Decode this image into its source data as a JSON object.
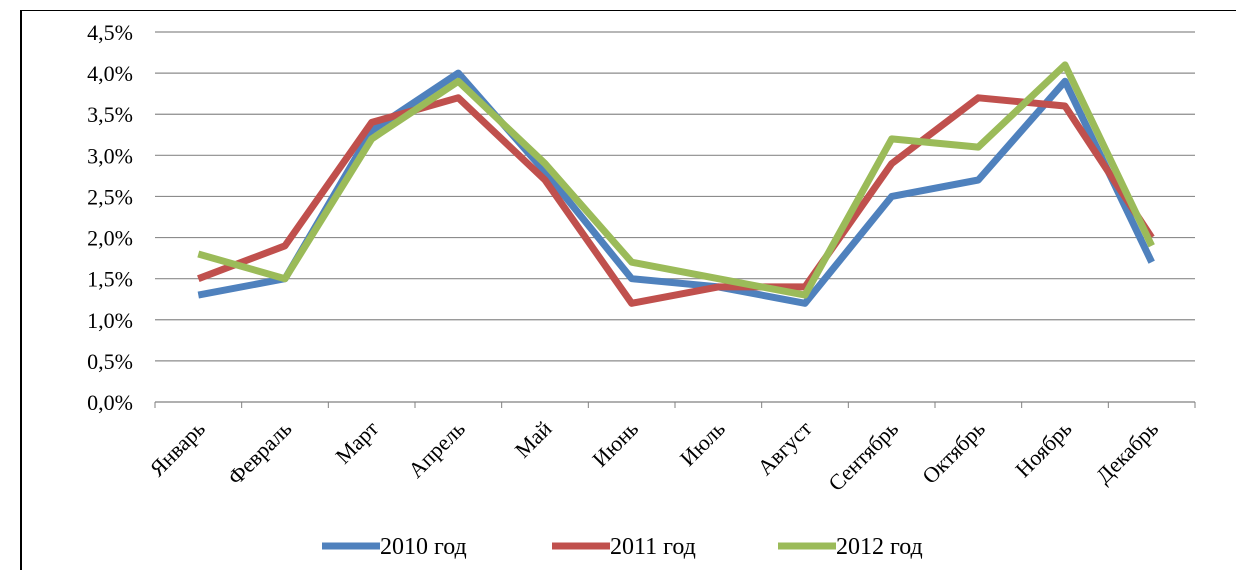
{
  "chart_data": {
    "type": "line",
    "categories": [
      "Январь",
      "Февраль",
      "Март",
      "Апрель",
      "Май",
      "Июнь",
      "Июль",
      "Август",
      "Сентябрь",
      "Октябрь",
      "Ноябрь",
      "Декабрь"
    ],
    "y_ticks": [
      "0,0%",
      "0,5%",
      "1,0%",
      "1,5%",
      "2,0%",
      "2,5%",
      "3,0%",
      "3,5%",
      "4,0%",
      "4,5%"
    ],
    "ylim": [
      0,
      4.5
    ],
    "ytick_step": 0.5,
    "grid": true,
    "legend_position": "bottom",
    "series": [
      {
        "name": "2010 год",
        "color": "#4f81bd",
        "values": [
          1.3,
          1.5,
          3.3,
          4.0,
          2.8,
          1.5,
          1.4,
          1.2,
          2.5,
          2.7,
          3.9,
          1.7
        ]
      },
      {
        "name": "2011 год",
        "color": "#c0504d",
        "values": [
          1.5,
          1.9,
          3.4,
          3.7,
          2.7,
          1.2,
          1.4,
          1.4,
          2.9,
          3.7,
          3.6,
          2.0
        ]
      },
      {
        "name": "2012 год",
        "color": "#9bbb59",
        "values": [
          1.8,
          1.5,
          3.2,
          3.9,
          2.9,
          1.7,
          1.5,
          1.3,
          3.2,
          3.1,
          4.1,
          1.9
        ]
      }
    ]
  }
}
